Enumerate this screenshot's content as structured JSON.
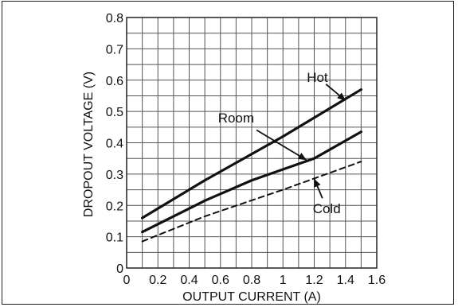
{
  "chart_data": {
    "type": "line",
    "title": "",
    "xlabel": "OUTPUT CURRENT (A)",
    "ylabel": "DROPOUT VOLTAGE (V)",
    "xlim": [
      0,
      1.6
    ],
    "ylim": [
      0,
      0.8
    ],
    "x_ticks": [
      "0",
      "0.2",
      "0.4",
      "0.6",
      "0.8",
      "1",
      "1.2",
      "1.4",
      "1.6"
    ],
    "y_ticks": [
      "0",
      "0.1",
      "0.2",
      "0.3",
      "0.4",
      "0.5",
      "0.6",
      "0.7",
      "0.8"
    ],
    "grid": true,
    "series": [
      {
        "name": "Hot",
        "style": "solid",
        "x": [
          0.1,
          0.5,
          1.0,
          1.5
        ],
        "y": [
          0.16,
          0.28,
          0.42,
          0.57
        ]
      },
      {
        "name": "Room",
        "style": "solid",
        "x": [
          0.1,
          0.5,
          0.8,
          1.2,
          1.5
        ],
        "y": [
          0.115,
          0.215,
          0.28,
          0.35,
          0.435
        ]
      },
      {
        "name": "Cold",
        "style": "dashed",
        "x": [
          0.1,
          0.5,
          1.0,
          1.5
        ],
        "y": [
          0.085,
          0.165,
          0.25,
          0.34
        ]
      }
    ],
    "annotations": [
      {
        "label": "Hot",
        "text_x": 1.22,
        "text_y": 0.61,
        "arrow_to": [
          1.4,
          0.535
        ]
      },
      {
        "label": "Room",
        "text_x": 0.7,
        "text_y": 0.48,
        "arrow_to": [
          1.15,
          0.345
        ]
      },
      {
        "label": "Cold",
        "text_x": 1.28,
        "text_y": 0.19,
        "arrow_to": [
          1.2,
          0.285
        ]
      }
    ]
  }
}
